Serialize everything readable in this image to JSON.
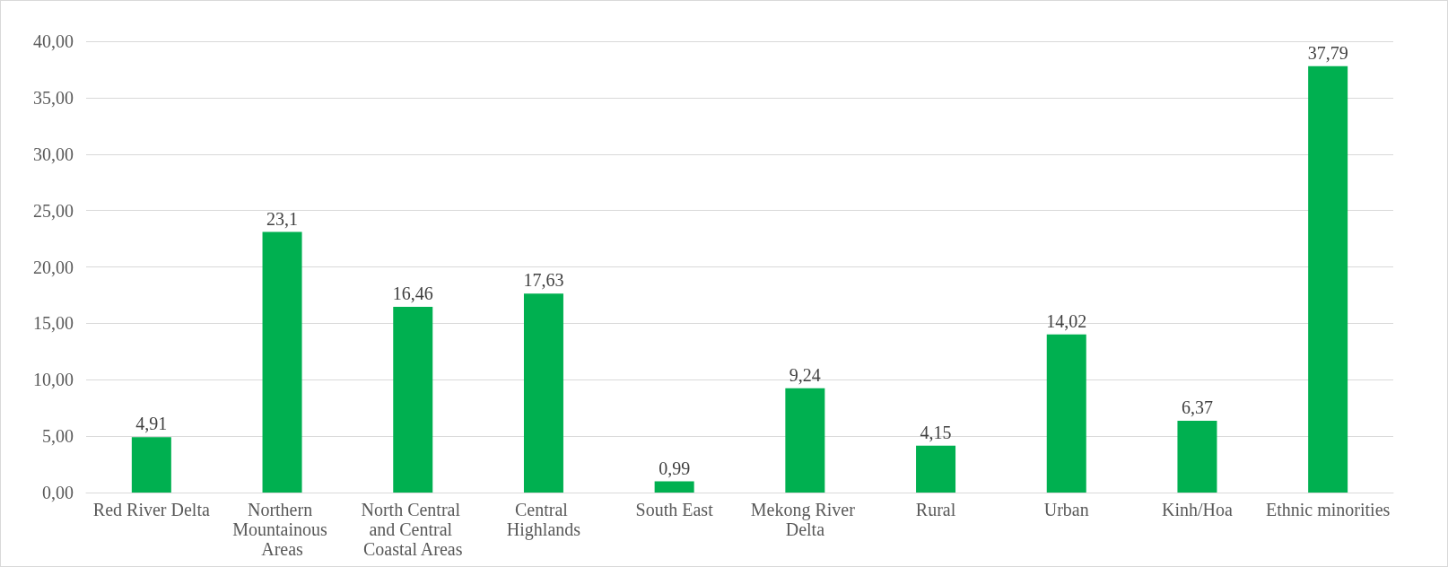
{
  "chart_data": {
    "type": "bar",
    "categories": [
      "Red River Delta",
      "Northern Mountainous Areas",
      "North Central and Central Coastal Areas",
      "Central Highlands",
      "South East",
      "Mekong River Delta",
      "Rural",
      "Urban",
      "Kinh/Hoa",
      "Ethnic minorities"
    ],
    "values": [
      4.91,
      23.1,
      16.46,
      17.63,
      0.99,
      9.24,
      4.15,
      14.02,
      6.37,
      37.79
    ],
    "value_labels": [
      "4,91",
      "23,1",
      "16,46",
      "17,63",
      "0,99",
      "9,24",
      "4,15",
      "14,02",
      "6,37",
      "37,79"
    ],
    "color": "#00b050",
    "ylim": [
      0,
      40
    ],
    "yticks": [
      {
        "value": 0,
        "label": "0,00"
      },
      {
        "value": 5,
        "label": "5,00"
      },
      {
        "value": 10,
        "label": "10,00"
      },
      {
        "value": 15,
        "label": "15,00"
      },
      {
        "value": 20,
        "label": "20,00"
      },
      {
        "value": 25,
        "label": "25,00"
      },
      {
        "value": 30,
        "label": "30,00"
      },
      {
        "value": 35,
        "label": "35,00"
      },
      {
        "value": 40,
        "label": "40,00"
      }
    ],
    "grid": "y"
  }
}
